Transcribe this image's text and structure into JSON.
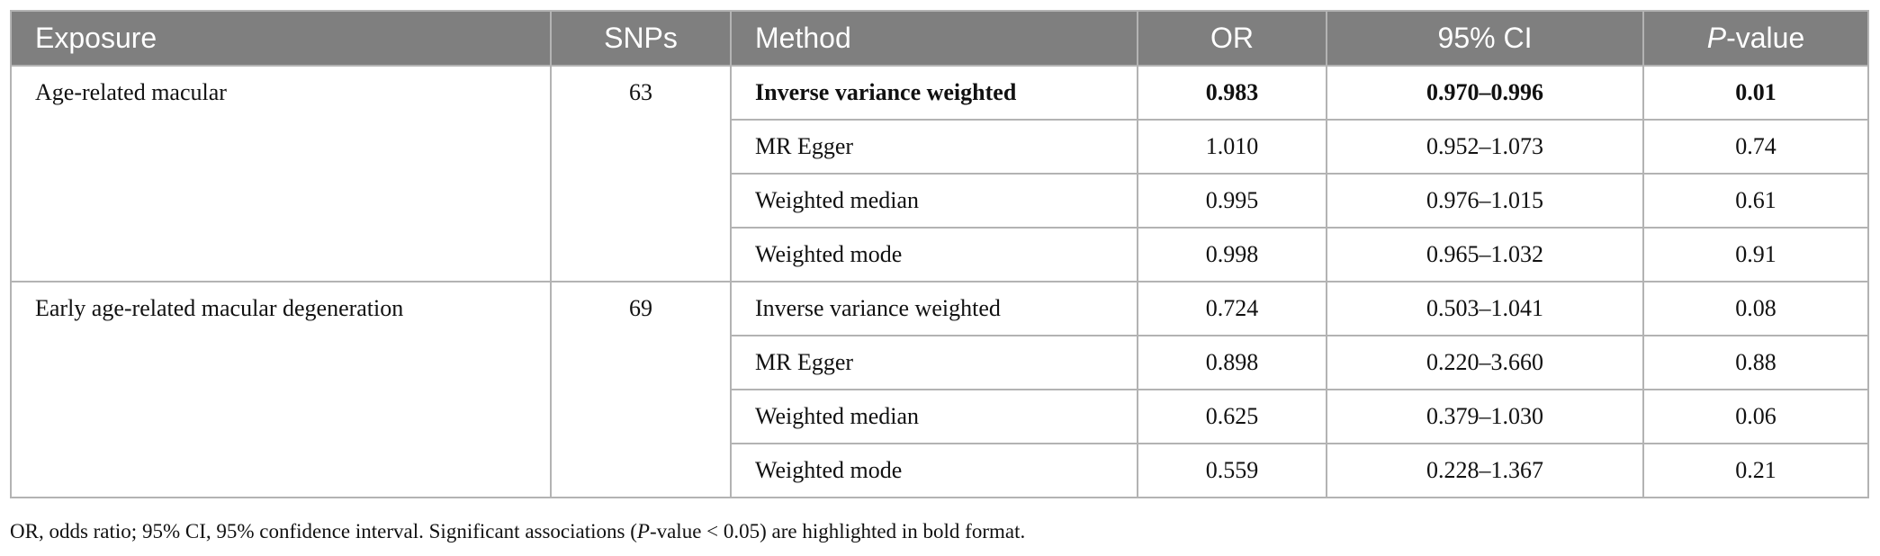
{
  "table": {
    "header": [
      "Exposure",
      "SNPs",
      "Method",
      "OR",
      "95% CI",
      {
        "italic": "P",
        "rest": "-value"
      }
    ],
    "groups": [
      {
        "exposure": "Age-related macular",
        "snps": "63",
        "rows": [
          {
            "method": "Inverse variance weighted",
            "or": "0.983",
            "ci": "0.970–0.996",
            "p": "0.01",
            "bold": true
          },
          {
            "method": "MR Egger",
            "or": "1.010",
            "ci": "0.952–1.073",
            "p": "0.74"
          },
          {
            "method": "Weighted median",
            "or": "0.995",
            "ci": "0.976–1.015",
            "p": "0.61"
          },
          {
            "method": "Weighted mode",
            "or": "0.998",
            "ci": "0.965–1.032",
            "p": "0.91"
          }
        ]
      },
      {
        "exposure": "Early age-related macular degeneration",
        "snps": "69",
        "rows": [
          {
            "method": "Inverse variance weighted",
            "or": "0.724",
            "ci": "0.503–1.041",
            "p": "0.08"
          },
          {
            "method": "MR Egger",
            "or": "0.898",
            "ci": "0.220–3.660",
            "p": "0.88"
          },
          {
            "method": "Weighted median",
            "or": "0.625",
            "ci": "0.379–1.030",
            "p": "0.06"
          },
          {
            "method": "Weighted mode",
            "or": "0.559",
            "ci": "0.228–1.367",
            "p": "0.21"
          }
        ]
      }
    ]
  },
  "footnote": {
    "parts": [
      "OR, odds ratio; 95% CI, 95% confidence interval. Significant associations (",
      "P",
      "-value < 0.05) are highlighted in bold format."
    ]
  }
}
